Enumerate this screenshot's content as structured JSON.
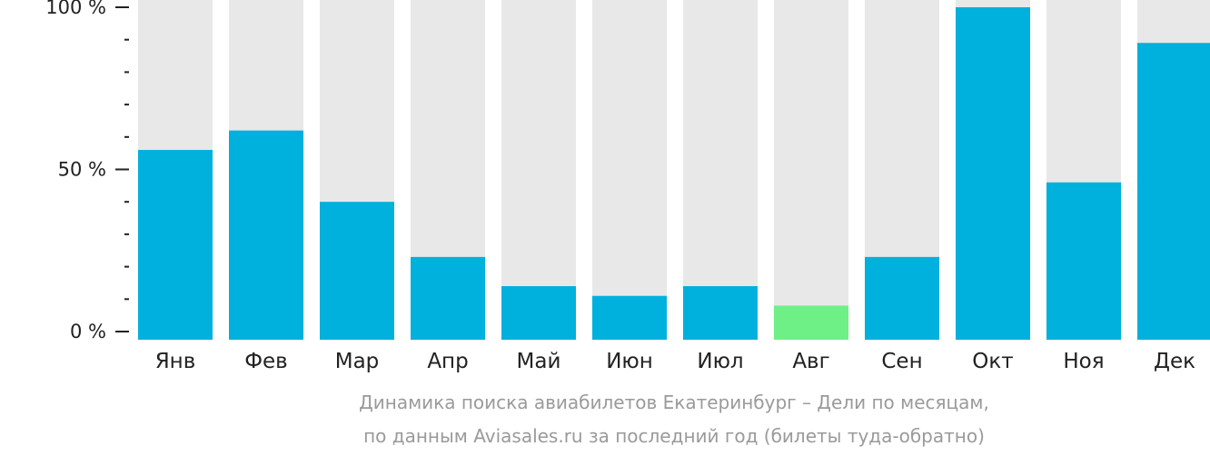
{
  "chart_data": {
    "type": "bar",
    "categories": [
      "Янв",
      "Фев",
      "Мар",
      "Апр",
      "Май",
      "Июн",
      "Июл",
      "Авг",
      "Сен",
      "Окт",
      "Ноя",
      "Дек"
    ],
    "values": [
      56,
      62,
      40,
      23,
      14,
      11,
      14,
      8,
      23,
      100,
      46,
      89
    ],
    "ylim": [
      0,
      100
    ],
    "yticks": [
      {
        "value": 0,
        "label": "0 %"
      },
      {
        "value": 50,
        "label": "50 %"
      },
      {
        "value": 100,
        "label": "100 %"
      }
    ],
    "minor_tick_step": 10,
    "highlight_category": "Авг",
    "legend": "none",
    "grid": false
  },
  "caption": {
    "line1": "Динамика поиска авиабилетов Екатеринбург – Дели по месяцам,",
    "line2": "по данным Aviasales.ru за последний год (билеты туда-обратно)"
  },
  "colors": {
    "bar": "#00b0dd",
    "highlight": "#6ef086",
    "track": "#e8e8e8",
    "axis": "#222222",
    "caption": "#9a9a9a"
  }
}
